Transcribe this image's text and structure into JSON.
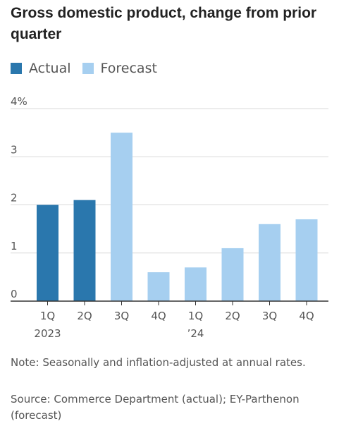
{
  "title": "Gross domestic product, change from prior quarter",
  "legend": [
    {
      "label": "Actual",
      "color": "#2a77ad"
    },
    {
      "label": "Forecast",
      "color": "#a6cff0"
    }
  ],
  "chart_data": {
    "type": "bar",
    "categories": [
      "1Q 2023",
      "2Q",
      "3Q",
      "4Q",
      "1Q ’24",
      "2Q",
      "3Q",
      "4Q"
    ],
    "category_labels": [
      [
        "1Q",
        "2023"
      ],
      [
        "2Q"
      ],
      [
        "3Q"
      ],
      [
        "4Q"
      ],
      [
        "1Q",
        "’24"
      ],
      [
        "2Q"
      ],
      [
        "3Q"
      ],
      [
        "4Q"
      ]
    ],
    "values": [
      2.0,
      2.1,
      3.5,
      0.6,
      0.7,
      1.1,
      1.6,
      1.7
    ],
    "kind": [
      "Actual",
      "Actual",
      "Forecast",
      "Forecast",
      "Forecast",
      "Forecast",
      "Forecast",
      "Forecast"
    ],
    "ylim": [
      0,
      4
    ],
    "yticks": [
      0,
      1,
      2,
      3,
      4
    ],
    "ytick_labels": [
      "0",
      "1",
      "2",
      "3",
      "4%"
    ],
    "grid": true,
    "legend_position": "top-left"
  },
  "note": "Note: Seasonally and inflation-adjusted at annual rates.",
  "source": "Source: Commerce Department (actual); EY-Parthenon (forecast)"
}
